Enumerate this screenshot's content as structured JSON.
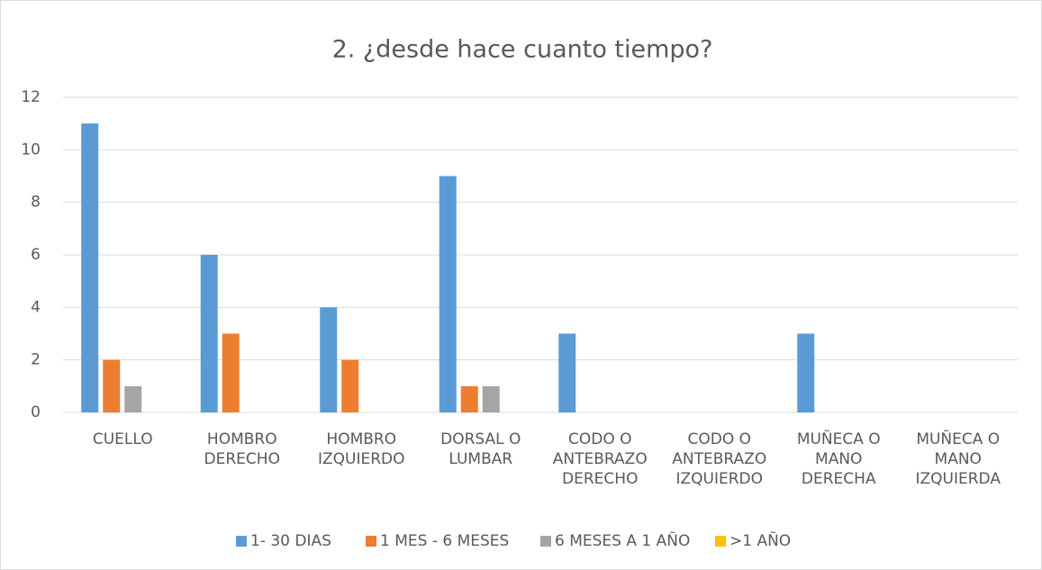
{
  "chart_data": {
    "type": "bar",
    "title": "2. ¿desde hace cuanto tiempo?",
    "categories": [
      "CUELLO",
      "HOMBRO DERECHO",
      "HOMBRO IZQUIERDO",
      "DORSAL O LUMBAR",
      "CODO O ANTEBRAZO DERECHO",
      "CODO O ANTEBRAZO IZQUIERDO",
      "MUÑECA O MANO DERECHA",
      "MUÑECA O MANO IZQUIERDA"
    ],
    "series": [
      {
        "name": "1- 30 DIAS",
        "color": "#5b9bd5",
        "values": [
          11,
          6,
          4,
          9,
          3,
          0,
          3,
          0
        ]
      },
      {
        "name": "1 MES - 6 MESES",
        "color": "#ed7d31",
        "values": [
          2,
          3,
          2,
          1,
          0,
          0,
          0,
          0
        ]
      },
      {
        "name": "6 MESES A 1 AÑO",
        "color": "#a5a5a5",
        "values": [
          1,
          0,
          0,
          1,
          0,
          0,
          0,
          0
        ]
      },
      {
        "name": ">1 AÑO",
        "color": "#ffc000",
        "values": [
          0,
          0,
          0,
          0,
          0,
          0,
          0,
          0
        ]
      }
    ],
    "ylim": [
      0,
      12
    ],
    "yticks": [
      0,
      2,
      4,
      6,
      8,
      10,
      12
    ],
    "grid": true,
    "legend": "bottom"
  }
}
